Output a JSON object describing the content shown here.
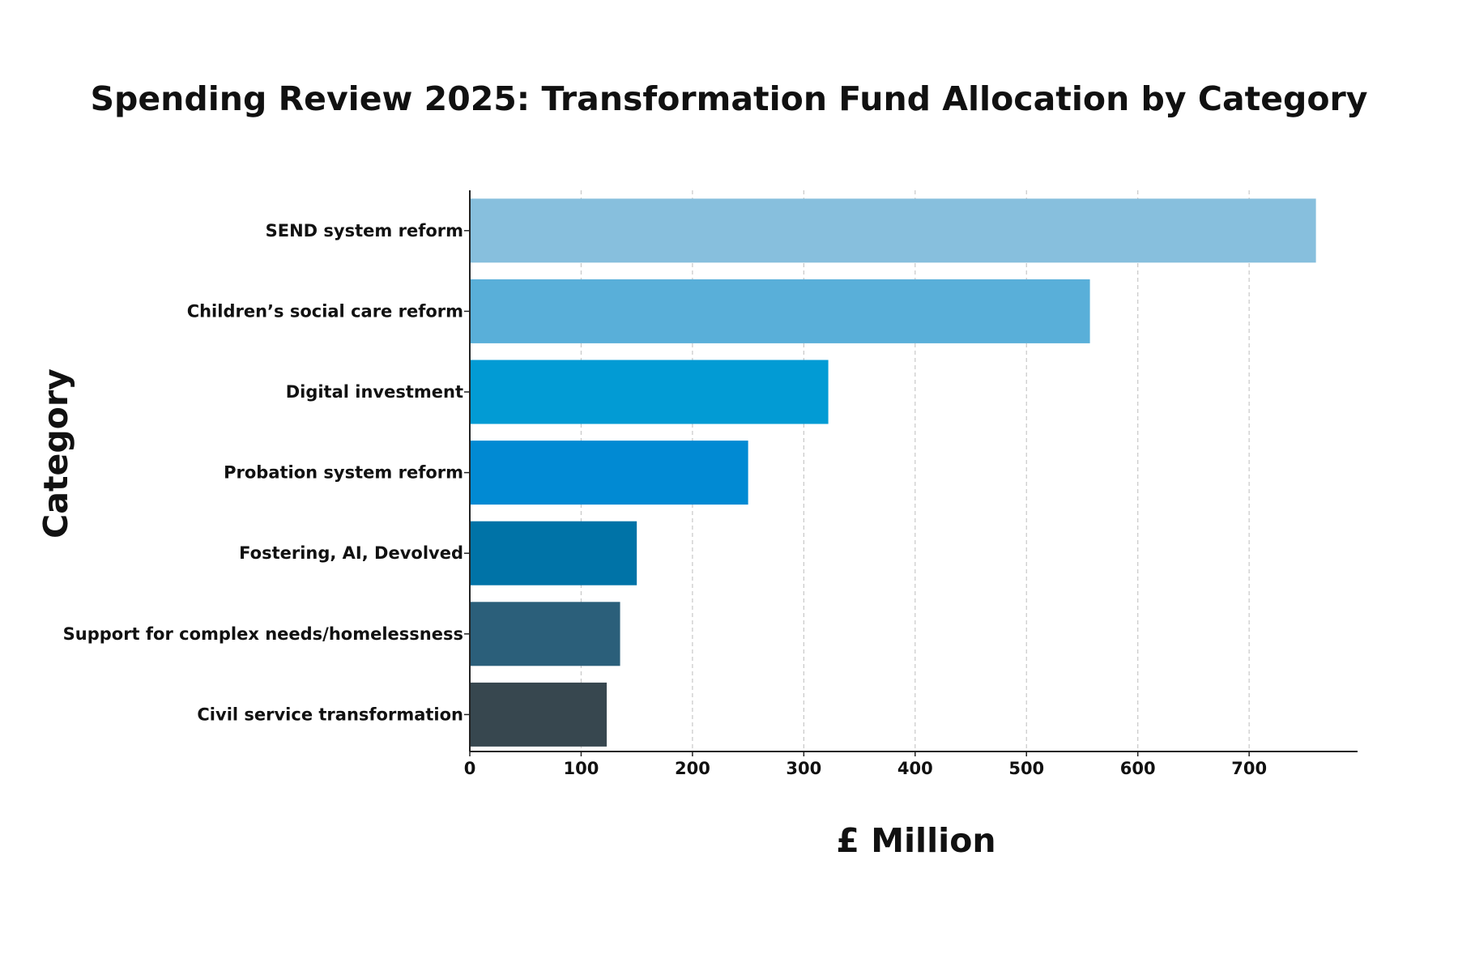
{
  "chart_data": {
    "type": "bar",
    "orientation": "horizontal",
    "title": "Spending Review 2025: Transformation Fund Allocation by Category",
    "xlabel": "£ Million",
    "ylabel": "Category",
    "categories": [
      "SEND system reform",
      "Children’s social care reform",
      "Digital investment",
      "Probation system reform",
      "Fostering, AI, Devolved",
      "Support for complex needs/homelessness",
      "Civil service transformation"
    ],
    "values": [
      760,
      557,
      322,
      250,
      150,
      135,
      123
    ],
    "xlim": [
      0,
      800
    ],
    "xticks": [
      0,
      100,
      200,
      300,
      400,
      500,
      600,
      700
    ],
    "grid": "vertical dashed",
    "colors": [
      "#87bfdd",
      "#59afd9",
      "#029bd4",
      "#018ad3",
      "#0073a7",
      "#2b5f7a",
      "#37474f"
    ]
  }
}
